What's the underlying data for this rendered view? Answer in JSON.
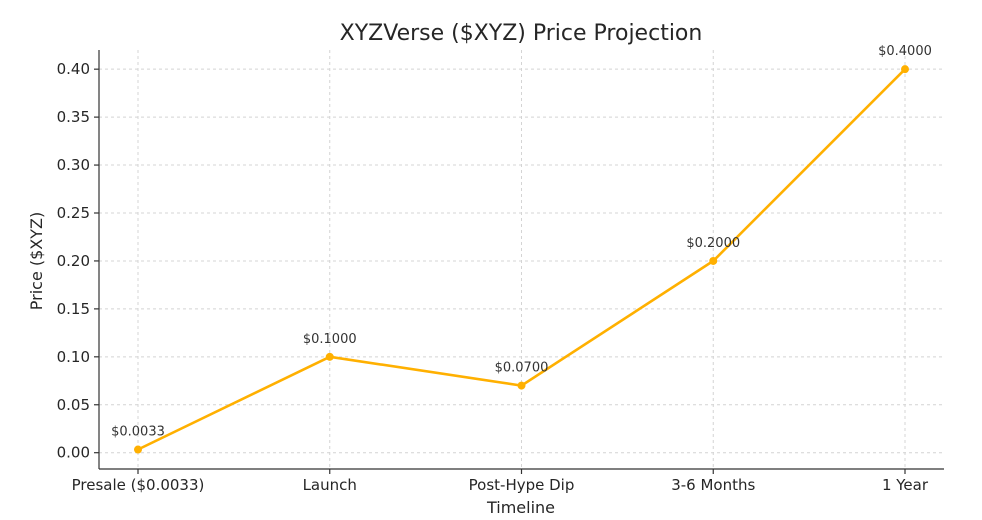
{
  "chart_data": {
    "type": "line",
    "title": "XYZVerse ($XYZ) Price Projection",
    "xlabel": "Timeline",
    "ylabel": "Price ($XYZ)",
    "categories": [
      "Presale ($0.0033)",
      "Launch",
      "Post-Hype Dip",
      "3-6 Months",
      "1 Year"
    ],
    "series": [
      {
        "values": [
          0.0033,
          0.1,
          0.07,
          0.2,
          0.4
        ],
        "labels": [
          "$0.0033",
          "$0.1000",
          "$0.0700",
          "$0.2000",
          "$0.4000"
        ],
        "color": "#FFB000"
      }
    ],
    "ylim": [
      -0.017,
      0.42
    ],
    "yticks": [
      0.0,
      0.05,
      0.1,
      0.15,
      0.2,
      0.25,
      0.3,
      0.35,
      0.4
    ],
    "ytick_labels": [
      "0.00",
      "0.05",
      "0.10",
      "0.15",
      "0.20",
      "0.25",
      "0.30",
      "0.35",
      "0.40"
    ],
    "grid": true,
    "legend": "none"
  }
}
